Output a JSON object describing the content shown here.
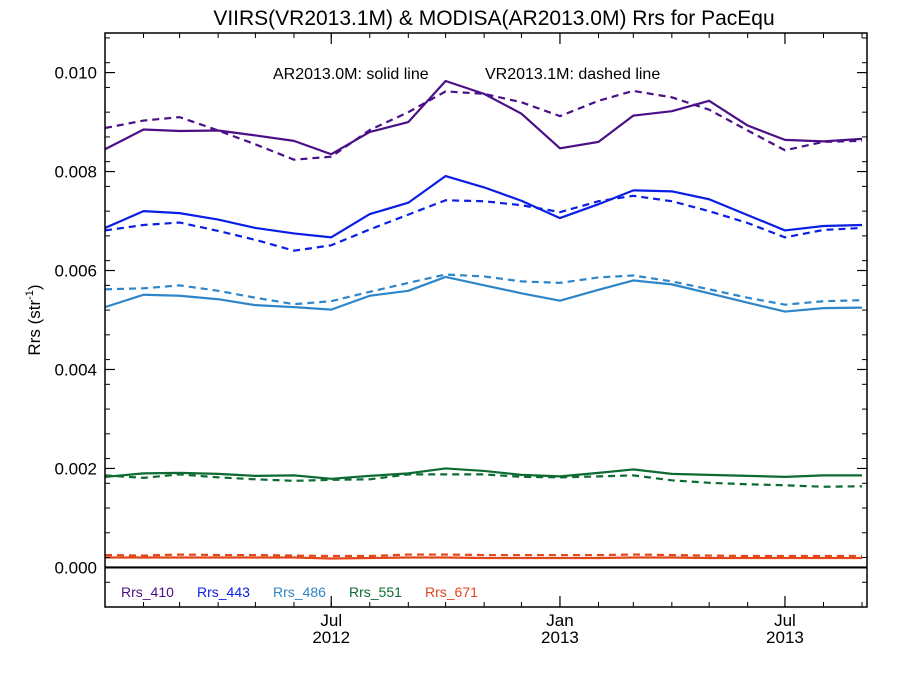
{
  "chart_data": {
    "type": "line",
    "title": "VIIRS(VR2013.1M) & MODISA(AR2013.0M)  Rrs for PacEqu",
    "xlabel": "",
    "ylabel": "Rrs (str",
    "ylabel_sup": "-1",
    "ylabel_close": ")",
    "annotation_solid": "AR2013.0M: solid line",
    "annotation_dashed": "VR2013.1M: dashed line",
    "ylim": [
      -0.0008,
      0.0108
    ],
    "xlim": [
      "2012-01-01",
      "2013-09-05"
    ],
    "grid": false,
    "legend_placement": "bottom-left",
    "y_ticks": [
      "0.000",
      "0.002",
      "0.004",
      "0.006",
      "0.008",
      "0.010"
    ],
    "x_ticks": [
      {
        "date": "2012-07-01",
        "month": "Jul",
        "year": "2012"
      },
      {
        "date": "2013-01-01",
        "month": "Jan",
        "year": "2013"
      },
      {
        "date": "2013-07-01",
        "month": "Jul",
        "year": "2013"
      }
    ],
    "x": [
      "2012-01-01",
      "2012-02-01",
      "2012-03-01",
      "2012-04-01",
      "2012-05-01",
      "2012-06-01",
      "2012-07-01",
      "2012-08-01",
      "2012-09-01",
      "2012-10-01",
      "2012-11-01",
      "2012-12-01",
      "2013-01-01",
      "2013-02-01",
      "2013-03-01",
      "2013-04-01",
      "2013-05-01",
      "2013-06-01",
      "2013-07-01",
      "2013-08-01",
      "2013-09-01"
    ],
    "series": [
      {
        "name": "Rrs_410",
        "color": "#4b0f87",
        "style": "solid",
        "values": [
          0.00845,
          0.00885,
          0.00882,
          0.00883,
          0.00873,
          0.00862,
          0.00835,
          0.0088,
          0.009,
          0.00983,
          0.00957,
          0.00917,
          0.00847,
          0.0086,
          0.00913,
          0.00922,
          0.00943,
          0.00893,
          0.00864,
          0.00861,
          0.00866
        ]
      },
      {
        "name": "Rrs_410",
        "color": "#4b0f87",
        "style": "dashed",
        "values": [
          0.00888,
          0.00903,
          0.0091,
          0.00883,
          0.00855,
          0.00824,
          0.0083,
          0.00884,
          0.0092,
          0.00962,
          0.00957,
          0.0094,
          0.00912,
          0.00943,
          0.00963,
          0.0095,
          0.00925,
          0.00883,
          0.00843,
          0.0086,
          0.00862
        ]
      },
      {
        "name": "Rrs_443",
        "color": "#0a1ee6",
        "style": "solid",
        "values": [
          0.00686,
          0.0072,
          0.00716,
          0.00703,
          0.00686,
          0.00675,
          0.00667,
          0.00714,
          0.00737,
          0.00791,
          0.00768,
          0.00741,
          0.00706,
          0.00734,
          0.00762,
          0.0076,
          0.00744,
          0.00712,
          0.00681,
          0.0069,
          0.00692
        ]
      },
      {
        "name": "Rrs_443",
        "color": "#0a1ee6",
        "style": "dashed",
        "values": [
          0.00681,
          0.00692,
          0.00697,
          0.0068,
          0.00662,
          0.0064,
          0.00651,
          0.00683,
          0.00713,
          0.00742,
          0.0074,
          0.00732,
          0.00718,
          0.0074,
          0.00751,
          0.0074,
          0.0072,
          0.00696,
          0.00667,
          0.00682,
          0.00686
        ]
      },
      {
        "name": "Rrs_486",
        "color": "#2e86c8",
        "style": "solid",
        "values": [
          0.00526,
          0.00551,
          0.00549,
          0.00542,
          0.0053,
          0.00526,
          0.00521,
          0.00549,
          0.00559,
          0.00587,
          0.0057,
          0.00554,
          0.00539,
          0.00561,
          0.0058,
          0.00572,
          0.00554,
          0.00535,
          0.00517,
          0.00524,
          0.00525
        ]
      },
      {
        "name": "Rrs_486",
        "color": "#2e86c8",
        "style": "dashed",
        "values": [
          0.00562,
          0.00564,
          0.0057,
          0.00559,
          0.00545,
          0.00532,
          0.00538,
          0.00557,
          0.00575,
          0.00592,
          0.00588,
          0.00578,
          0.00575,
          0.00586,
          0.0059,
          0.00578,
          0.00562,
          0.00545,
          0.00531,
          0.00538,
          0.0054
        ]
      },
      {
        "name": "Rrs_551",
        "color": "#0d6b32",
        "style": "solid",
        "values": [
          0.00183,
          0.0019,
          0.00191,
          0.00189,
          0.00185,
          0.00186,
          0.00179,
          0.00185,
          0.0019,
          0.002,
          0.00195,
          0.00187,
          0.00184,
          0.00191,
          0.00198,
          0.00189,
          0.00187,
          0.00185,
          0.00183,
          0.00186,
          0.00186
        ]
      },
      {
        "name": "Rrs_551",
        "color": "#0d6b32",
        "style": "dashed",
        "values": [
          0.00186,
          0.00181,
          0.00188,
          0.00182,
          0.00178,
          0.00175,
          0.00177,
          0.00178,
          0.00188,
          0.00188,
          0.00188,
          0.00183,
          0.00182,
          0.00184,
          0.00186,
          0.00176,
          0.00171,
          0.00168,
          0.00166,
          0.00163,
          0.00164
        ]
      },
      {
        "name": "Rrs_671",
        "color": "#e2461a",
        "style": "solid",
        "values": [
          0.0002,
          0.0002,
          0.0002,
          0.0002,
          0.0002,
          0.0002,
          0.00018,
          0.00019,
          0.0002,
          0.0002,
          0.00019,
          0.00019,
          0.00019,
          0.00019,
          0.0002,
          0.0002,
          0.00019,
          0.00019,
          0.00019,
          0.00019,
          0.00019
        ]
      },
      {
        "name": "Rrs_671",
        "color": "#e2461a",
        "style": "dashed",
        "values": [
          0.00025,
          0.00024,
          0.00026,
          0.00025,
          0.00025,
          0.00024,
          0.00023,
          0.00023,
          0.00026,
          0.00026,
          0.00025,
          0.00025,
          0.00025,
          0.00025,
          0.00026,
          0.00025,
          0.00024,
          0.00023,
          0.00023,
          0.00023,
          0.00023
        ]
      }
    ],
    "legend": [
      {
        "label": "Rrs_410",
        "color": "#4b0f87"
      },
      {
        "label": "Rrs_443",
        "color": "#0a1ee6"
      },
      {
        "label": "Rrs_486",
        "color": "#2e86c8"
      },
      {
        "label": "Rrs_551",
        "color": "#0d6b32"
      },
      {
        "label": "Rrs_671",
        "color": "#e2461a"
      }
    ]
  }
}
